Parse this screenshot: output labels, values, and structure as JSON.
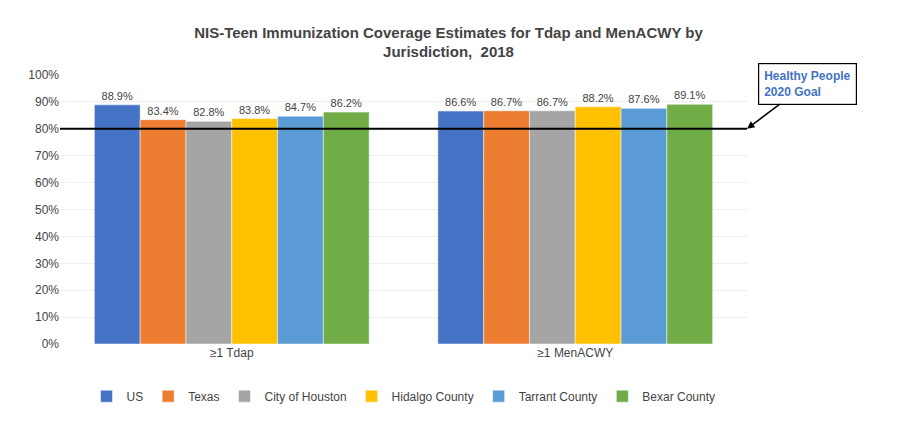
{
  "chart_data": {
    "type": "bar",
    "title": "NIS-Teen Immunization Coverage Estimates for Tdap and MenACWY by\nJurisdiction,  2018",
    "categories": [
      "≥1 Tdap",
      "≥1 MenACWY"
    ],
    "series": [
      {
        "name": "US",
        "color": "#4472C4",
        "values": [
          88.9,
          86.6
        ],
        "value_labels": [
          "88.9%",
          "86.6%"
        ]
      },
      {
        "name": "Texas",
        "color": "#ED7D31",
        "values": [
          83.4,
          86.7
        ],
        "value_labels": [
          "83.4%",
          "86.7%"
        ]
      },
      {
        "name": "City of Houston",
        "color": "#A5A5A5",
        "values": [
          82.8,
          86.7
        ],
        "value_labels": [
          "82.8%",
          "86.7%"
        ]
      },
      {
        "name": "Hidalgo County",
        "color": "#FFC000",
        "values": [
          83.8,
          88.2
        ],
        "value_labels": [
          "83.8%",
          "88.2%"
        ]
      },
      {
        "name": "Tarrant County",
        "color": "#5B9BD5",
        "values": [
          84.7,
          87.6
        ],
        "value_labels": [
          "84.7%",
          "87.6%"
        ]
      },
      {
        "name": "Bexar County",
        "color": "#70AD47",
        "values": [
          86.2,
          89.1
        ],
        "value_labels": [
          "86.2%",
          "89.1%"
        ]
      }
    ],
    "ylim": [
      0,
      100
    ],
    "yticks": [
      {
        "value": 0,
        "label": "0%"
      },
      {
        "value": 10,
        "label": "10%"
      },
      {
        "value": 20,
        "label": "20%"
      },
      {
        "value": 30,
        "label": "30%"
      },
      {
        "value": 40,
        "label": "40%"
      },
      {
        "value": 50,
        "label": "50%"
      },
      {
        "value": 60,
        "label": "60%"
      },
      {
        "value": 70,
        "label": "70%"
      },
      {
        "value": 80,
        "label": "80%"
      },
      {
        "value": 90,
        "label": "90%"
      },
      {
        "value": 100,
        "label": "100%"
      }
    ],
    "grid": true,
    "legend": "bottom",
    "data_labels": true,
    "reference_line": {
      "y": 80,
      "label": "Healthy People\n2020 Goal",
      "color": "#4472C4"
    }
  }
}
